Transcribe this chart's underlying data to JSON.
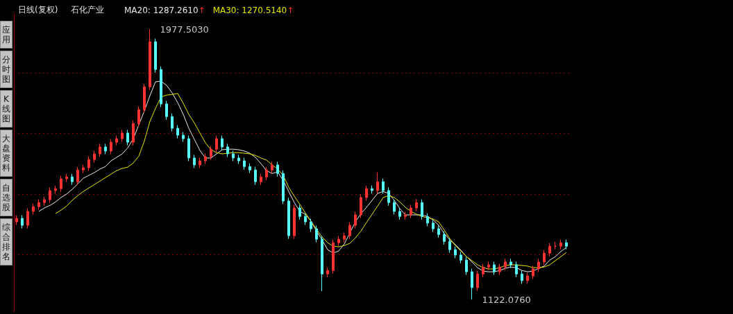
{
  "chart_data": {
    "type": "candlestick",
    "title": "日线(复权)",
    "subtitle": "石化产业",
    "categories": [
      null,
      null,
      null,
      null,
      null,
      null,
      null,
      null,
      null,
      null,
      null,
      null,
      null,
      null,
      null,
      null,
      null,
      null,
      null,
      null,
      null,
      null,
      null,
      null,
      null,
      null,
      null,
      null,
      null,
      null,
      null,
      null,
      null,
      null,
      null,
      null,
      null,
      null,
      null,
      null,
      null,
      null,
      null,
      null,
      null,
      null,
      null,
      null,
      null,
      null,
      null,
      null,
      null,
      null,
      null,
      null,
      null,
      null,
      null,
      null,
      null,
      null,
      null,
      null,
      null,
      null,
      null,
      null,
      null,
      null,
      null,
      null,
      null,
      null,
      null,
      null,
      null,
      null,
      null,
      null,
      null,
      null,
      null,
      null,
      null,
      null,
      null,
      null,
      null,
      null,
      null,
      null,
      null,
      null,
      null,
      null,
      null,
      null,
      null,
      null
    ],
    "ohlc": [
      [
        1368,
        1389,
        1358,
        1379
      ],
      [
        1379,
        1389,
        1347,
        1357
      ],
      [
        1357,
        1411,
        1347,
        1401
      ],
      [
        1401,
        1426,
        1391,
        1416
      ],
      [
        1416,
        1439,
        1406,
        1429
      ],
      [
        1429,
        1448,
        1419,
        1438
      ],
      [
        1438,
        1477,
        1428,
        1467
      ],
      [
        1467,
        1483,
        1457,
        1473
      ],
      [
        1473,
        1514,
        1463,
        1504
      ],
      [
        1504,
        1520,
        1494,
        1510
      ],
      [
        1510,
        1520,
        1485,
        1495
      ],
      [
        1495,
        1542,
        1485,
        1532
      ],
      [
        1532,
        1549,
        1522,
        1539
      ],
      [
        1539,
        1575,
        1529,
        1565
      ],
      [
        1565,
        1593,
        1555,
        1583
      ],
      [
        1583,
        1615,
        1573,
        1605
      ],
      [
        1605,
        1615,
        1582,
        1592
      ],
      [
        1592,
        1630,
        1582,
        1620
      ],
      [
        1620,
        1641,
        1610,
        1631
      ],
      [
        1631,
        1659,
        1621,
        1649
      ],
      [
        1649,
        1659,
        1610,
        1620
      ],
      [
        1620,
        1689,
        1610,
        1679
      ],
      [
        1679,
        1733,
        1669,
        1723
      ],
      [
        1723,
        1805,
        1713,
        1795
      ],
      [
        1795,
        1977.503,
        1785,
        1938
      ],
      [
        1938,
        1948,
        1840,
        1850
      ],
      [
        1850,
        1860,
        1731,
        1741
      ],
      [
        1741,
        1751,
        1691,
        1701
      ],
      [
        1701,
        1711,
        1654,
        1664
      ],
      [
        1664,
        1674,
        1632,
        1642
      ],
      [
        1642,
        1652,
        1621,
        1631
      ],
      [
        1631,
        1641,
        1560,
        1570
      ],
      [
        1570,
        1580,
        1538,
        1548
      ],
      [
        1548,
        1571,
        1538,
        1561
      ],
      [
        1561,
        1584,
        1551,
        1574
      ],
      [
        1574,
        1608,
        1564,
        1598
      ],
      [
        1598,
        1641,
        1588,
        1631
      ],
      [
        1631,
        1641,
        1595,
        1605
      ],
      [
        1605,
        1615,
        1573,
        1583
      ],
      [
        1583,
        1593,
        1560,
        1570
      ],
      [
        1570,
        1580,
        1551,
        1561
      ],
      [
        1561,
        1571,
        1533,
        1543
      ],
      [
        1543,
        1553,
        1522,
        1532
      ],
      [
        1532,
        1542,
        1485,
        1495
      ],
      [
        1495,
        1520,
        1485,
        1510
      ],
      [
        1510,
        1542,
        1500,
        1532
      ],
      [
        1532,
        1558,
        1522,
        1548
      ],
      [
        1548,
        1558,
        1511,
        1521
      ],
      [
        1521,
        1531,
        1424,
        1434
      ],
      [
        1434,
        1444,
        1314,
        1324
      ],
      [
        1324,
        1422,
        1314,
        1412
      ],
      [
        1412,
        1422,
        1375,
        1385
      ],
      [
        1385,
        1395,
        1358,
        1368
      ],
      [
        1368,
        1378,
        1336,
        1346
      ],
      [
        1346,
        1356,
        1303,
        1313
      ],
      [
        1313,
        1323,
        1149,
        1203
      ],
      [
        1203,
        1224,
        1193,
        1214
      ],
      [
        1214,
        1312,
        1204,
        1302
      ],
      [
        1302,
        1323,
        1292,
        1313
      ],
      [
        1313,
        1334,
        1303,
        1324
      ],
      [
        1324,
        1367,
        1314,
        1357
      ],
      [
        1357,
        1400,
        1347,
        1390
      ],
      [
        1390,
        1455,
        1380,
        1445
      ],
      [
        1445,
        1483,
        1435,
        1473
      ],
      [
        1473,
        1483,
        1457,
        1467
      ],
      [
        1467,
        1525,
        1457,
        1495
      ],
      [
        1495,
        1505,
        1457,
        1467
      ],
      [
        1467,
        1477,
        1419,
        1429
      ],
      [
        1429,
        1439,
        1391,
        1401
      ],
      [
        1401,
        1411,
        1375,
        1385
      ],
      [
        1385,
        1400,
        1375,
        1390
      ],
      [
        1390,
        1422,
        1380,
        1412
      ],
      [
        1412,
        1440,
        1402,
        1429
      ],
      [
        1429,
        1439,
        1375,
        1385
      ],
      [
        1385,
        1395,
        1354,
        1364
      ],
      [
        1364,
        1374,
        1336,
        1346
      ],
      [
        1346,
        1356,
        1318,
        1328
      ],
      [
        1328,
        1338,
        1296,
        1306
      ],
      [
        1306,
        1316,
        1270,
        1280
      ],
      [
        1280,
        1290,
        1253,
        1263
      ],
      [
        1263,
        1273,
        1237,
        1247
      ],
      [
        1247,
        1257,
        1200,
        1210
      ],
      [
        1210,
        1220,
        1122.076,
        1160
      ],
      [
        1160,
        1213,
        1150,
        1203
      ],
      [
        1203,
        1235,
        1193,
        1225
      ],
      [
        1225,
        1242,
        1215,
        1232
      ],
      [
        1232,
        1242,
        1200,
        1210
      ],
      [
        1210,
        1235,
        1200,
        1225
      ],
      [
        1225,
        1251,
        1215,
        1241
      ],
      [
        1241,
        1251,
        1222,
        1232
      ],
      [
        1232,
        1242,
        1193,
        1203
      ],
      [
        1203,
        1213,
        1172,
        1182
      ],
      [
        1182,
        1207,
        1172,
        1197
      ],
      [
        1197,
        1229,
        1187,
        1219
      ],
      [
        1219,
        1251,
        1209,
        1241
      ],
      [
        1241,
        1279,
        1231,
        1269
      ],
      [
        1269,
        1301,
        1259,
        1291
      ],
      [
        1291,
        1305,
        1281,
        1291
      ],
      [
        1291,
        1312,
        1281,
        1302
      ],
      [
        1302,
        1312,
        1281,
        1291
      ]
    ],
    "colors": [
      "#ff3232",
      "#54fcfc",
      "#ff3232",
      "#ff3232",
      "#ff3232",
      "#ff3232",
      "#ff3232",
      "#ff3232",
      "#ff3232",
      "#ff3232",
      "#54fcfc",
      "#ff3232",
      "#ff3232",
      "#ff3232",
      "#ff3232",
      "#ff3232",
      "#54fcfc",
      "#ff3232",
      "#ff3232",
      "#ff3232",
      "#54fcfc",
      "#ff3232",
      "#ff3232",
      "#ff3232",
      "#ff3232",
      "#54fcfc",
      "#54fcfc",
      "#54fcfc",
      "#54fcfc",
      "#54fcfc",
      "#54fcfc",
      "#54fcfc",
      "#54fcfc",
      "#ff3232",
      "#ff3232",
      "#ff3232",
      "#ff3232",
      "#54fcfc",
      "#54fcfc",
      "#54fcfc",
      "#54fcfc",
      "#54fcfc",
      "#54fcfc",
      "#54fcfc",
      "#ff3232",
      "#ff3232",
      "#ff3232",
      "#54fcfc",
      "#54fcfc",
      "#54fcfc",
      "#ff3232",
      "#54fcfc",
      "#54fcfc",
      "#54fcfc",
      "#54fcfc",
      "#54fcfc",
      "#ff3232",
      "#ff3232",
      "#ff3232",
      "#ff3232",
      "#ff3232",
      "#ff3232",
      "#ff3232",
      "#ff3232",
      "#54fcfc",
      "#ff3232",
      "#54fcfc",
      "#54fcfc",
      "#54fcfc",
      "#54fcfc",
      "#ff3232",
      "#ff3232",
      "#ff3232",
      "#54fcfc",
      "#54fcfc",
      "#54fcfc",
      "#54fcfc",
      "#54fcfc",
      "#54fcfc",
      "#54fcfc",
      "#54fcfc",
      "#54fcfc",
      "#54fcfc",
      "#ff3232",
      "#ff3232",
      "#ff3232",
      "#54fcfc",
      "#ff3232",
      "#ff3232",
      "#54fcfc",
      "#54fcfc",
      "#54fcfc",
      "#ff3232",
      "#ff3232",
      "#ff3232",
      "#ff3232",
      "#ff3232",
      "#ff3232",
      "#ff3232",
      "#54fcfc"
    ],
    "series": [
      {
        "name": "MA20: 1287.2610↑",
        "type": "line",
        "color": "#e8e8e8",
        "values": [
          null,
          null,
          null,
          null,
          1401,
          1412,
          1420,
          1431,
          1445,
          1456,
          1471,
          1488,
          1506,
          1515,
          1524,
          1535,
          1543,
          1561,
          1572,
          1583,
          1602,
          1631,
          1675,
          1719,
          1767,
          1811,
          1813,
          1800,
          1776,
          1745,
          1708,
          1664,
          1629,
          1594,
          1570,
          1570,
          1583,
          1596,
          1598,
          1598,
          1596,
          1592,
          1585,
          1572,
          1552,
          1530,
          1521,
          1526,
          1499,
          1464,
          1429,
          1401,
          1392,
          1370,
          1339,
          1311,
          1280,
          1269,
          1276,
          1298,
          1333,
          1368,
          1394,
          1414,
          1436,
          1458,
          1464,
          1458,
          1436,
          1410,
          1390,
          1390,
          1390,
          1390,
          1385,
          1374,
          1357,
          1331,
          1311,
          1296,
          1278,
          1258,
          1241,
          1223,
          1212,
          1210,
          1210,
          1214,
          1221,
          1225,
          1223,
          1214,
          1210,
          1212,
          1221,
          1228,
          1247,
          1258,
          1274,
          1287
        ]
      },
      {
        "name": "MA30: 1270.5140↑",
        "type": "line",
        "color": "#e6e600",
        "values": [
          null,
          null,
          null,
          null,
          null,
          null,
          null,
          1394,
          1405,
          1418,
          1436,
          1451,
          1464,
          1475,
          1486,
          1497,
          1508,
          1519,
          1530,
          1537,
          1541,
          1554,
          1576,
          1624,
          1686,
          1727,
          1763,
          1769,
          1771,
          1774,
          1743,
          1708,
          1681,
          1649,
          1618,
          1596,
          1587,
          1583,
          1585,
          1587,
          1587,
          1585,
          1583,
          1578,
          1570,
          1563,
          1548,
          1535,
          1515,
          1477,
          1449,
          1423,
          1396,
          1370,
          1344,
          1320,
          1302,
          1291,
          1289,
          1293,
          1300,
          1317,
          1339,
          1366,
          1392,
          1418,
          1445,
          1451,
          1445,
          1431,
          1414,
          1401,
          1392,
          1385,
          1381,
          1377,
          1368,
          1342,
          1315,
          1293,
          1276,
          1258,
          1245,
          1232,
          1223,
          1219,
          1219,
          1223,
          1230,
          1232,
          1232,
          1230,
          1228,
          1223,
          1223,
          1225,
          1232,
          1245,
          1258,
          1271
        ]
      }
    ],
    "ylim": [
      1083,
      2026
    ],
    "yticks": [
      {
        "value": 1265,
        "label": null
      },
      {
        "value": 1456,
        "label": null
      },
      {
        "value": 1649,
        "label": null
      },
      {
        "value": 1839,
        "label": null
      }
    ],
    "grid": "y",
    "tick_labels": false,
    "legend": "top left",
    "marker": "none",
    "annotations": [
      "应用",
      "分时图",
      "K线图",
      "大盘资料",
      "自选股",
      "综合排名",
      "1977.5030",
      "1122.0760"
    ]
  }
}
